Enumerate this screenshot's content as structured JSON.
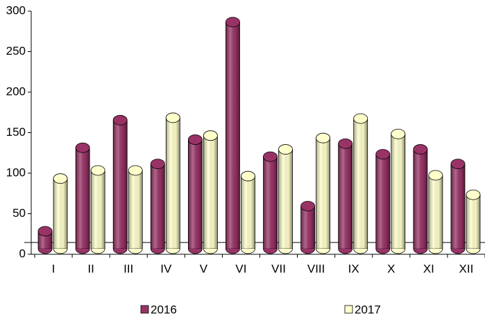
{
  "chart_data": {
    "type": "bar",
    "categories": [
      "I",
      "II",
      "III",
      "IV",
      "V",
      "VI",
      "VII",
      "VIII",
      "IX",
      "X",
      "XI",
      "XII"
    ],
    "series": [
      {
        "name": "2016",
        "color": "#993366",
        "values": [
          25,
          128,
          162,
          108,
          138,
          283,
          117,
          56,
          133,
          120,
          126,
          108
        ]
      },
      {
        "name": "2017",
        "color": "#ffffcc",
        "values": [
          90,
          100,
          100,
          165,
          143,
          93,
          126,
          140,
          164,
          145,
          94,
          70
        ]
      }
    ],
    "ylim": [
      0,
      300
    ],
    "yticks": [
      0,
      50,
      100,
      150,
      200,
      250,
      300
    ],
    "grid": false,
    "legend": "bottom"
  }
}
